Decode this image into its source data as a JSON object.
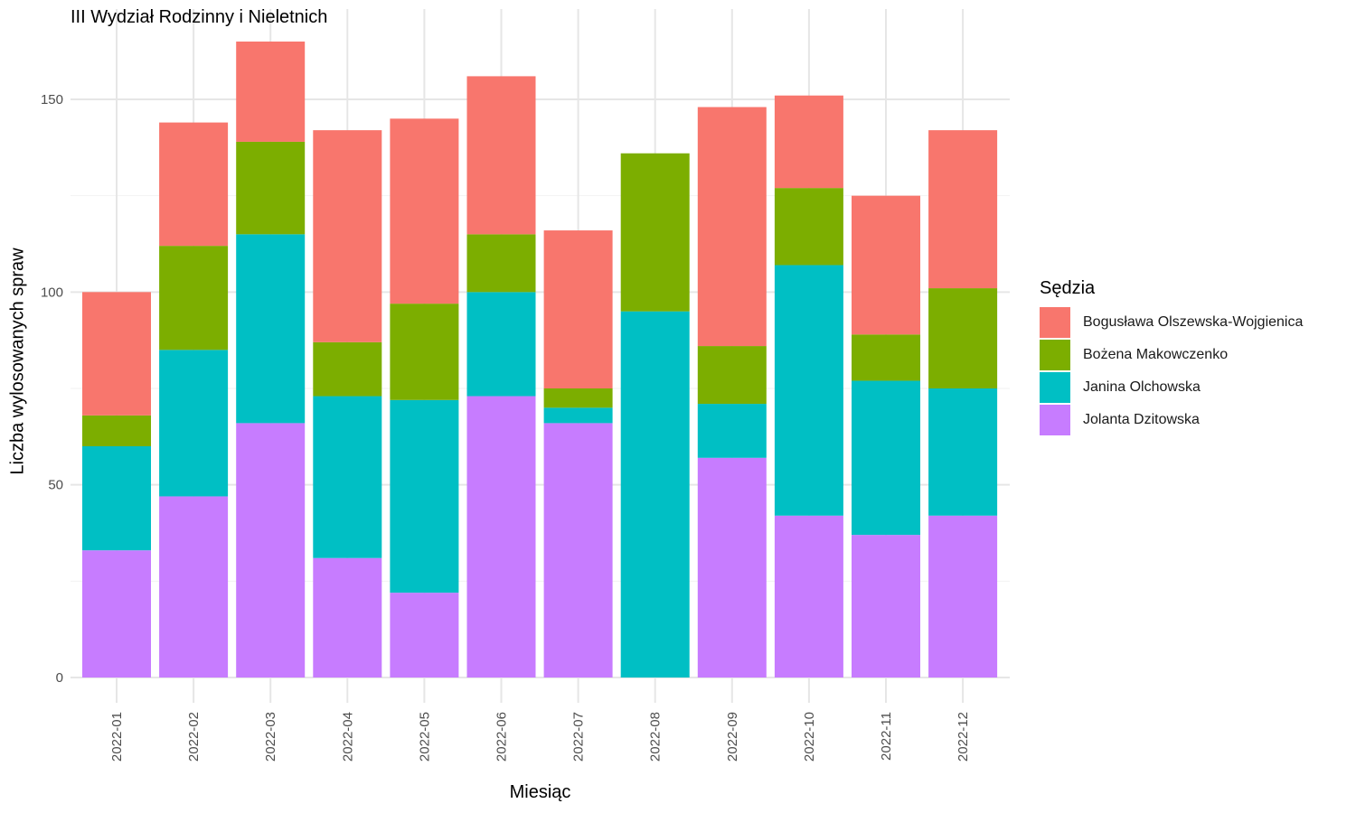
{
  "chart_data": {
    "type": "bar",
    "stacked": true,
    "title": "III Wydział Rodzinny i Nieletnich",
    "xlabel": "Miesiąc",
    "ylabel": "Liczba wylosowanych spraw",
    "ylim": [
      0,
      165
    ],
    "yticks": [
      0,
      50,
      100,
      150
    ],
    "grid": true,
    "legend_position": "right",
    "legend_title": "Sędzia",
    "categories": [
      "2022-01",
      "2022-02",
      "2022-03",
      "2022-04",
      "2022-05",
      "2022-06",
      "2022-07",
      "2022-08",
      "2022-09",
      "2022-10",
      "2022-11",
      "2022-12"
    ],
    "series": [
      {
        "name": "Jolanta Dzitowska",
        "color": "#C77CFF",
        "values": [
          33,
          47,
          66,
          31,
          22,
          73,
          66,
          0,
          57,
          42,
          37,
          42
        ]
      },
      {
        "name": "Janina Olchowska",
        "color": "#00BFC4",
        "values": [
          27,
          38,
          49,
          42,
          50,
          27,
          4,
          95,
          14,
          65,
          40,
          33
        ]
      },
      {
        "name": "Bożena Makowczenko",
        "color": "#7CAE00",
        "values": [
          8,
          27,
          24,
          14,
          25,
          15,
          5,
          41,
          15,
          20,
          12,
          26
        ]
      },
      {
        "name": "Bogusława Olszewska-Wojgienica",
        "color": "#F8766D",
        "values": [
          32,
          32,
          26,
          55,
          48,
          41,
          41,
          0,
          62,
          24,
          36,
          41
        ]
      }
    ],
    "legend_order": [
      "Bogusława Olszewska-Wojgienica",
      "Bożena Makowczenko",
      "Janina Olchowska",
      "Jolanta Dzitowska"
    ]
  }
}
